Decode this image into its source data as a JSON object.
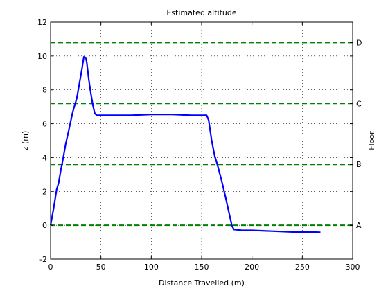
{
  "chart_data": {
    "type": "line",
    "title": "Estimated altitude",
    "xlabel": "Distance Travelled (m)",
    "ylabel": "z (m)",
    "y2label": "Floor",
    "xlim": [
      0,
      300
    ],
    "ylim": [
      -2,
      12
    ],
    "xticks": [
      0,
      50,
      100,
      150,
      200,
      250,
      300
    ],
    "yticks": [
      -2,
      0,
      2,
      4,
      6,
      8,
      10,
      12
    ],
    "grid": true,
    "series": [
      {
        "color": "#0000ff",
        "points": [
          [
            0,
            0
          ],
          [
            3,
            1
          ],
          [
            6,
            2.1
          ],
          [
            8,
            2.5
          ],
          [
            10,
            3.2
          ],
          [
            12,
            3.8
          ],
          [
            15,
            4.8
          ],
          [
            18,
            5.6
          ],
          [
            22,
            6.7
          ],
          [
            26,
            7.5
          ],
          [
            29,
            8.5
          ],
          [
            31,
            9.2
          ],
          [
            33,
            9.95
          ],
          [
            35,
            9.9
          ],
          [
            36,
            9.6
          ],
          [
            38,
            8.6
          ],
          [
            40,
            7.8
          ],
          [
            42,
            7.1
          ],
          [
            44,
            6.6
          ],
          [
            46,
            6.5
          ],
          [
            60,
            6.5
          ],
          [
            80,
            6.5
          ],
          [
            100,
            6.55
          ],
          [
            120,
            6.55
          ],
          [
            140,
            6.5
          ],
          [
            155,
            6.5
          ],
          [
            157,
            6.2
          ],
          [
            160,
            5.0
          ],
          [
            163,
            4.1
          ],
          [
            166,
            3.5
          ],
          [
            170,
            2.6
          ],
          [
            174,
            1.6
          ],
          [
            177,
            0.8
          ],
          [
            180,
            0
          ],
          [
            182,
            -0.25
          ],
          [
            190,
            -0.3
          ],
          [
            200,
            -0.3
          ],
          [
            220,
            -0.35
          ],
          [
            240,
            -0.4
          ],
          [
            260,
            -0.4
          ],
          [
            268,
            -0.42
          ]
        ]
      }
    ],
    "reference_lines": [
      {
        "y": 0,
        "label": "A",
        "color": "#008000"
      },
      {
        "y": 3.6,
        "label": "B",
        "color": "#008000"
      },
      {
        "y": 7.2,
        "label": "C",
        "color": "#008000"
      },
      {
        "y": 10.8,
        "label": "D",
        "color": "#008000"
      }
    ]
  }
}
